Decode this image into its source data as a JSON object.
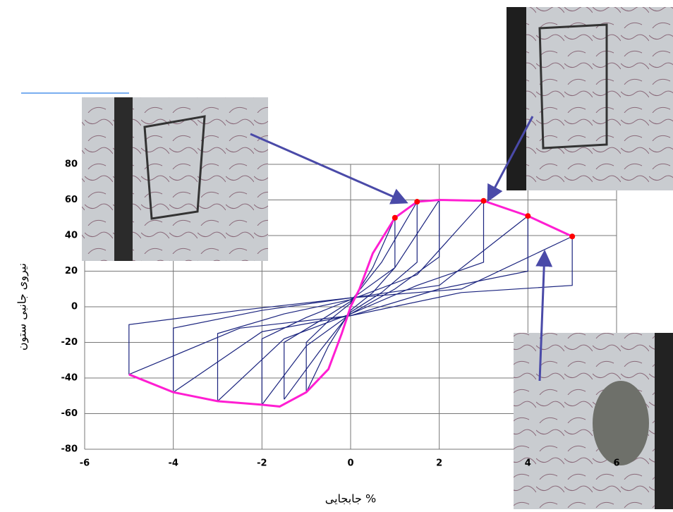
{
  "chart_data": {
    "type": "hysteresis",
    "x_label": "جابجایی %",
    "y_label": "نیروی جانبی ستون",
    "xlim": [
      -6,
      6
    ],
    "ylim": [
      -80,
      80
    ],
    "xticks": [
      -6,
      -4,
      -2,
      0,
      2,
      4,
      6
    ],
    "yticks": [
      -80,
      -60,
      -40,
      -20,
      0,
      20,
      40,
      60,
      80
    ],
    "grid": true,
    "loop_color": "#1a237e",
    "loops": [
      {
        "x": [
          -1,
          -1,
          -0.5,
          0,
          0.5,
          1,
          1,
          0.5,
          0,
          -0.5,
          -1
        ],
        "y": [
          -48,
          -20,
          -8,
          2,
          22,
          50,
          22,
          8,
          -2,
          -22,
          -48
        ]
      },
      {
        "x": [
          -1.5,
          -1.5,
          -0.7,
          0,
          0.7,
          1.5,
          1.5,
          0.7,
          0,
          -0.7,
          -1.5
        ],
        "y": [
          -52,
          -20,
          -8,
          3,
          25,
          59,
          25,
          8,
          -3,
          -25,
          -52
        ]
      },
      {
        "x": [
          -2,
          -2,
          -1,
          0,
          1,
          2,
          2,
          1,
          0,
          -1,
          -2
        ],
        "y": [
          -55,
          -18,
          -6,
          4,
          22,
          60,
          28,
          10,
          -4,
          -22,
          -55
        ]
      },
      {
        "x": [
          -3,
          -3,
          -1.5,
          0,
          1.5,
          3,
          3,
          1.5,
          0,
          -1.5,
          -3
        ],
        "y": [
          -53,
          -15,
          -4,
          4,
          18,
          59.5,
          25,
          12,
          -4,
          -18,
          -53
        ]
      },
      {
        "x": [
          -4,
          -4,
          -2,
          0,
          2,
          4,
          4,
          2,
          0,
          -2,
          -4
        ],
        "y": [
          -48,
          -12,
          -2,
          5,
          12,
          51,
          20,
          10,
          -5,
          -14,
          -48
        ]
      },
      {
        "x": [
          -5,
          -5,
          -2.5,
          0,
          2.5,
          5,
          5,
          2.5,
          0,
          -2.5,
          -5
        ],
        "y": [
          -38,
          -10,
          -2,
          5,
          10,
          39.5,
          12,
          8,
          -5,
          -12,
          -38
        ]
      }
    ],
    "envelope": {
      "color": "#ff1ed2",
      "x": [
        -5,
        -4,
        -3,
        -2,
        -1.6,
        -1,
        -0.5,
        -0.2,
        0,
        0.2,
        0.5,
        1,
        1.5,
        2,
        3,
        4,
        5
      ],
      "y": [
        -38,
        -48,
        -53,
        -55,
        -56,
        -48,
        -35,
        -15,
        0,
        10,
        30,
        50,
        59,
        60,
        59.5,
        51,
        39.5
      ]
    },
    "points": {
      "color": "#ff0000",
      "x": [
        1,
        1.5,
        3,
        4,
        5
      ],
      "y": [
        50,
        59,
        59.5,
        51,
        39.5
      ]
    }
  }
}
